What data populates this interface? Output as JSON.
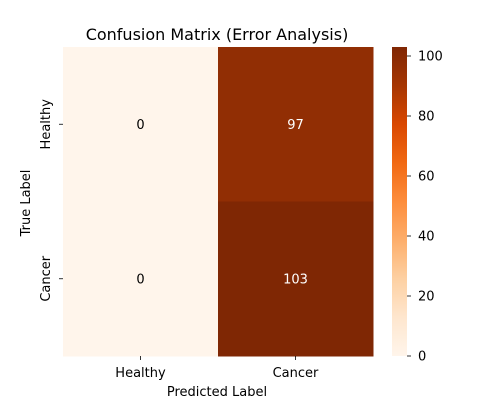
{
  "chart_data": {
    "type": "heatmap",
    "title": "Confusion Matrix (Error Analysis)",
    "xlabel": "Predicted Label",
    "ylabel": "True Label",
    "x_categories": [
      "Healthy",
      "Cancer"
    ],
    "y_categories": [
      "Healthy",
      "Cancer"
    ],
    "values": [
      [
        0,
        97
      ],
      [
        0,
        103
      ]
    ],
    "colormap": "Oranges",
    "color_range": [
      0,
      103
    ],
    "colorbar_ticks": [
      0,
      20,
      40,
      60,
      80,
      100
    ],
    "annotations": true,
    "legend": "colorbar-right"
  }
}
